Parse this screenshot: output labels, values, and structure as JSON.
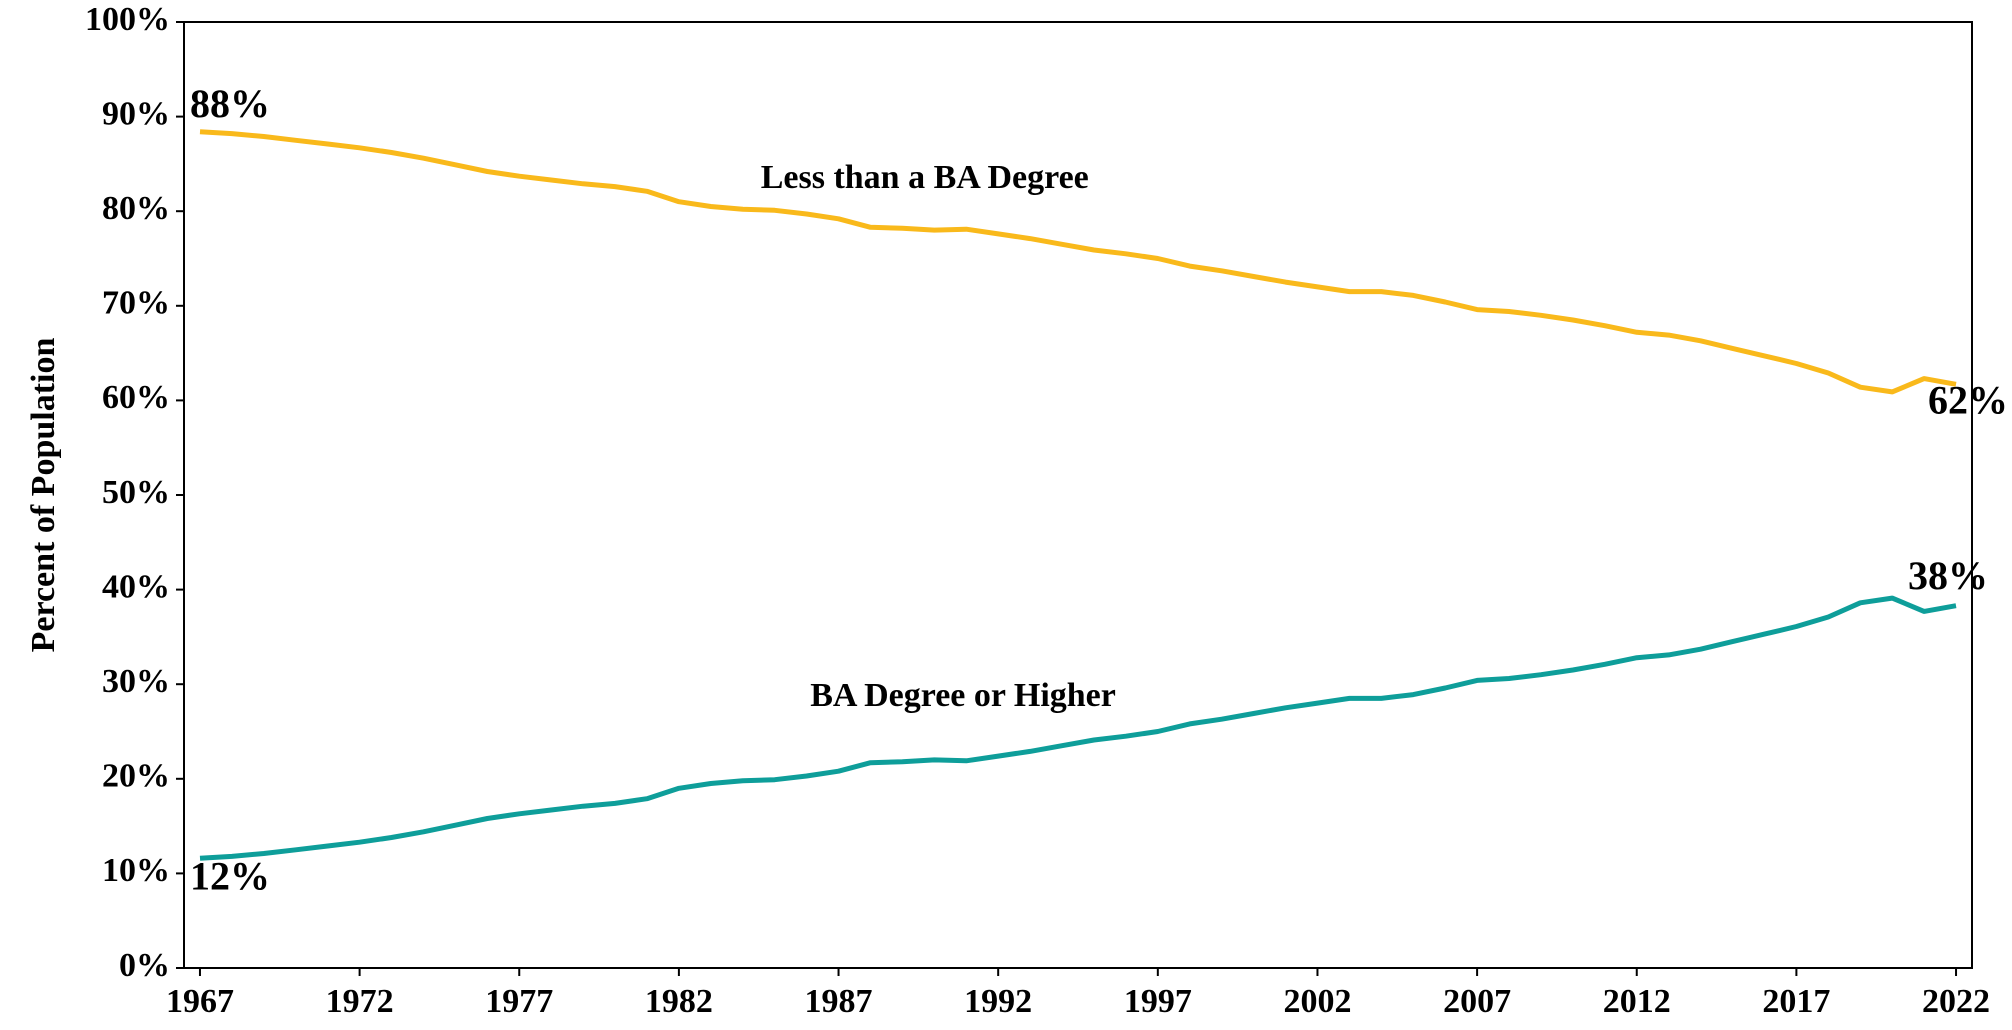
{
  "chart_data": {
    "type": "line",
    "ylabel": "Percent of Population",
    "x": [
      1967,
      1968,
      1969,
      1970,
      1971,
      1972,
      1973,
      1974,
      1975,
      1976,
      1977,
      1978,
      1979,
      1980,
      1981,
      1982,
      1983,
      1984,
      1985,
      1986,
      1987,
      1988,
      1989,
      1990,
      1991,
      1992,
      1993,
      1994,
      1995,
      1996,
      1997,
      1998,
      1999,
      2000,
      2001,
      2002,
      2003,
      2004,
      2005,
      2006,
      2007,
      2008,
      2009,
      2010,
      2011,
      2012,
      2013,
      2014,
      2015,
      2016,
      2017,
      2018,
      2019,
      2020,
      2021,
      2022
    ],
    "xlim": [
      1966.5,
      2022.5
    ],
    "xticks": [
      1967,
      1972,
      1977,
      1982,
      1987,
      1992,
      1997,
      2002,
      2007,
      2012,
      2017,
      2022
    ],
    "ylim": [
      0,
      100
    ],
    "yticks": [
      {
        "value": 0,
        "label": "0%"
      },
      {
        "value": 10,
        "label": "10%"
      },
      {
        "value": 20,
        "label": "20%"
      },
      {
        "value": 30,
        "label": "30%"
      },
      {
        "value": 40,
        "label": "40%"
      },
      {
        "value": 50,
        "label": "50%"
      },
      {
        "value": 60,
        "label": "60%"
      },
      {
        "value": 70,
        "label": "70%"
      },
      {
        "value": 80,
        "label": "80%"
      },
      {
        "value": 90,
        "label": "90%"
      },
      {
        "value": 100,
        "label": "100%"
      }
    ],
    "series": [
      {
        "name": "Less than a BA Degree",
        "color": "#F9B91B",
        "values": [
          88.4,
          88.2,
          87.9,
          87.5,
          87.1,
          86.7,
          86.2,
          85.6,
          84.9,
          84.2,
          83.7,
          83.3,
          82.9,
          82.6,
          82.1,
          81.0,
          80.5,
          80.2,
          80.1,
          79.7,
          79.2,
          78.3,
          78.2,
          78.0,
          78.1,
          77.6,
          77.1,
          76.5,
          75.9,
          75.5,
          75.0,
          74.2,
          73.7,
          73.1,
          72.5,
          72.0,
          71.5,
          71.5,
          71.1,
          70.4,
          69.6,
          69.4,
          69.0,
          68.5,
          67.9,
          67.2,
          66.9,
          66.3,
          65.5,
          64.7,
          63.9,
          62.9,
          61.4,
          60.9,
          62.3,
          61.7
        ],
        "value_labels": [
          "88%",
          null,
          null,
          null,
          null,
          null,
          null,
          null,
          null,
          null,
          null,
          null,
          null,
          null,
          null,
          null,
          null,
          null,
          null,
          null,
          null,
          null,
          null,
          null,
          null,
          null,
          null,
          null,
          null,
          null,
          null,
          null,
          null,
          null,
          null,
          null,
          null,
          null,
          null,
          null,
          null,
          null,
          null,
          null,
          null,
          null,
          null,
          null,
          null,
          null,
          null,
          null,
          null,
          null,
          null,
          "62%"
        ]
      },
      {
        "name": "BA Degree or Higher",
        "color": "#0E9E9A",
        "values": [
          11.6,
          11.8,
          12.1,
          12.5,
          12.9,
          13.3,
          13.8,
          14.4,
          15.1,
          15.8,
          16.3,
          16.7,
          17.1,
          17.4,
          17.9,
          19.0,
          19.5,
          19.8,
          19.9,
          20.3,
          20.8,
          21.7,
          21.8,
          22.0,
          21.9,
          22.4,
          22.9,
          23.5,
          24.1,
          24.5,
          25.0,
          25.8,
          26.3,
          26.9,
          27.5,
          28.0,
          28.5,
          28.5,
          28.9,
          29.6,
          30.4,
          30.6,
          31.0,
          31.5,
          32.1,
          32.8,
          33.1,
          33.7,
          34.5,
          35.3,
          36.1,
          37.1,
          38.6,
          39.1,
          37.7,
          38.3
        ],
        "value_labels": [
          "12%",
          null,
          null,
          null,
          null,
          null,
          null,
          null,
          null,
          null,
          null,
          null,
          null,
          null,
          null,
          null,
          null,
          null,
          null,
          null,
          null,
          null,
          null,
          null,
          null,
          null,
          null,
          null,
          null,
          null,
          null,
          null,
          null,
          null,
          null,
          null,
          null,
          null,
          null,
          null,
          null,
          null,
          null,
          null,
          null,
          null,
          null,
          null,
          null,
          null,
          null,
          null,
          null,
          null,
          null,
          "38%"
        ]
      }
    ]
  }
}
